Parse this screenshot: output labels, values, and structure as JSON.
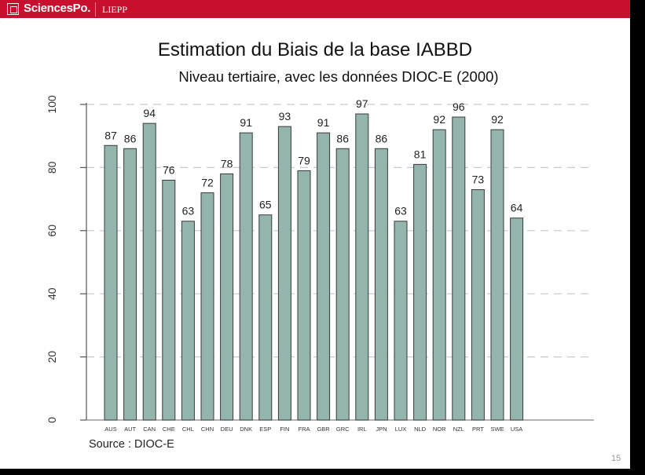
{
  "header": {
    "brand": "SciencesPo.",
    "lab": "LIEPP",
    "logo_icon": "sciencespo-logo-icon"
  },
  "slide": {
    "page_number": "15",
    "source": "Source : DIOC-E"
  },
  "colors": {
    "header": "#c8102e",
    "bar_fill": "#93b5ac",
    "bar_stroke": "#3a3a3a",
    "grid": "#c7c9d4"
  },
  "chart_data": {
    "type": "bar",
    "title": "Estimation du Biais de la base IABBD",
    "subtitle": "Niveau tertiaire, avec les données DIOC-E (2000)",
    "xlabel": "",
    "ylabel": "",
    "ylim": [
      0,
      100
    ],
    "yticks": [
      0,
      20,
      40,
      60,
      80,
      100
    ],
    "grid": true,
    "categories": [
      "AUS",
      "AUT",
      "CAN",
      "CHE",
      "CHL",
      "CHN",
      "DEU",
      "DNK",
      "ESP",
      "FIN",
      "FRA",
      "GBR",
      "GRC",
      "IRL",
      "JPN",
      "LUX",
      "NLD",
      "NOR",
      "NZL",
      "PRT",
      "SWE",
      "USA"
    ],
    "values": [
      87,
      86,
      94,
      76,
      63,
      72,
      78,
      91,
      65,
      93,
      79,
      91,
      86,
      97,
      86,
      63,
      81,
      92,
      96,
      73,
      92,
      64
    ]
  }
}
